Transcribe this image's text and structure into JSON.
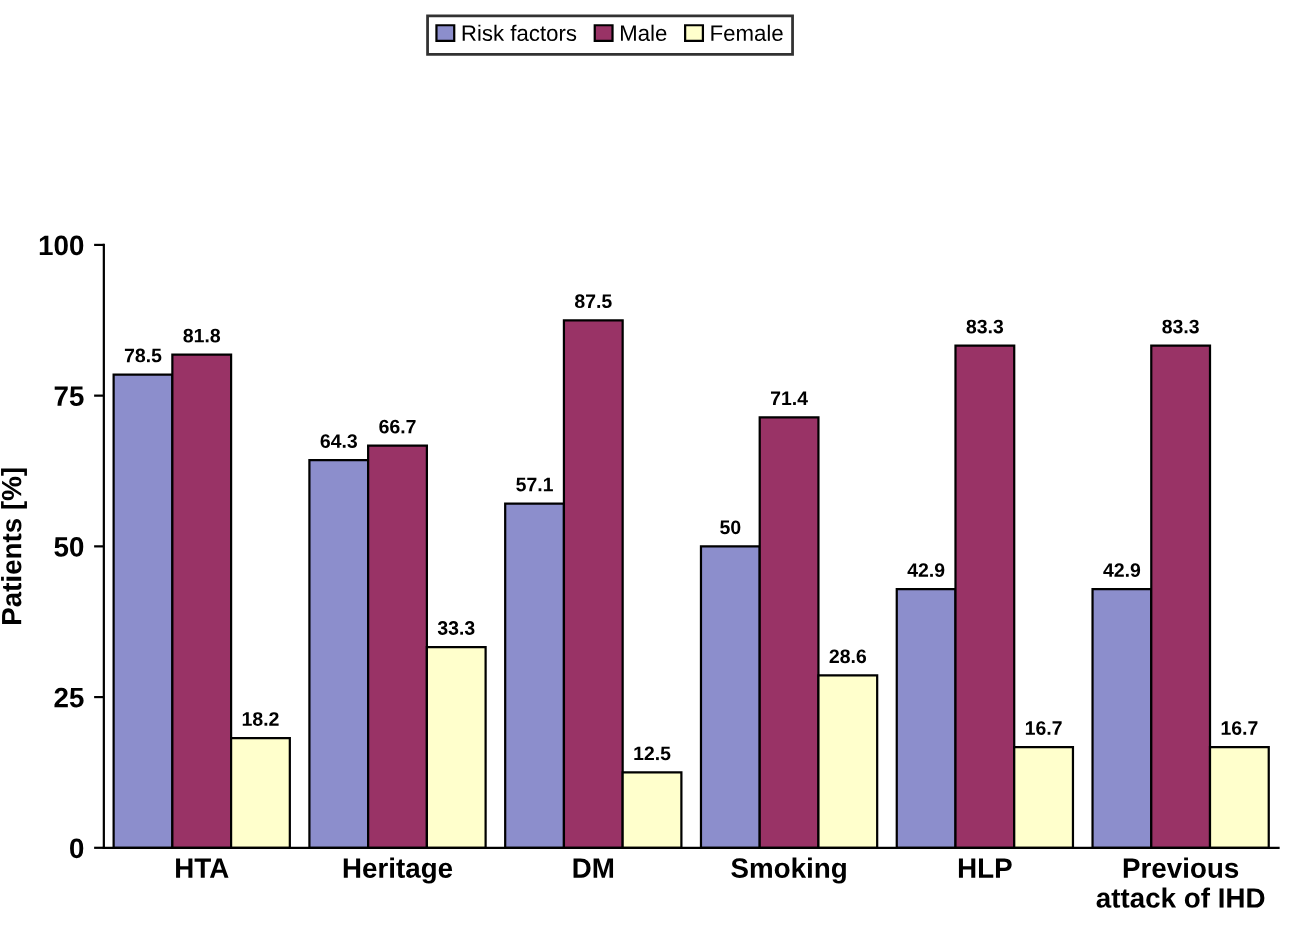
{
  "chart_data": {
    "type": "bar",
    "ylabel": "Patients [%]",
    "categories": [
      "HTA",
      "Heritage",
      "DM",
      "Smoking",
      "HLP",
      "Previous\nattack of IHD"
    ],
    "series": [
      {
        "name": "Risk factors",
        "color": "#8c8ecc",
        "values": [
          78.5,
          64.3,
          57.1,
          50,
          42.9,
          42.9
        ]
      },
      {
        "name": "Male",
        "color": "#993366",
        "values": [
          81.8,
          66.7,
          87.5,
          71.4,
          83.3,
          83.3
        ]
      },
      {
        "name": "Female",
        "color": "#ffffcc",
        "values": [
          18.2,
          33.3,
          12.5,
          28.6,
          16.7,
          16.7
        ]
      }
    ],
    "ylim": [
      0,
      100
    ],
    "yticks": [
      0,
      25,
      50,
      75,
      100
    ],
    "grid": false,
    "legend": "top",
    "data_labels": true
  }
}
